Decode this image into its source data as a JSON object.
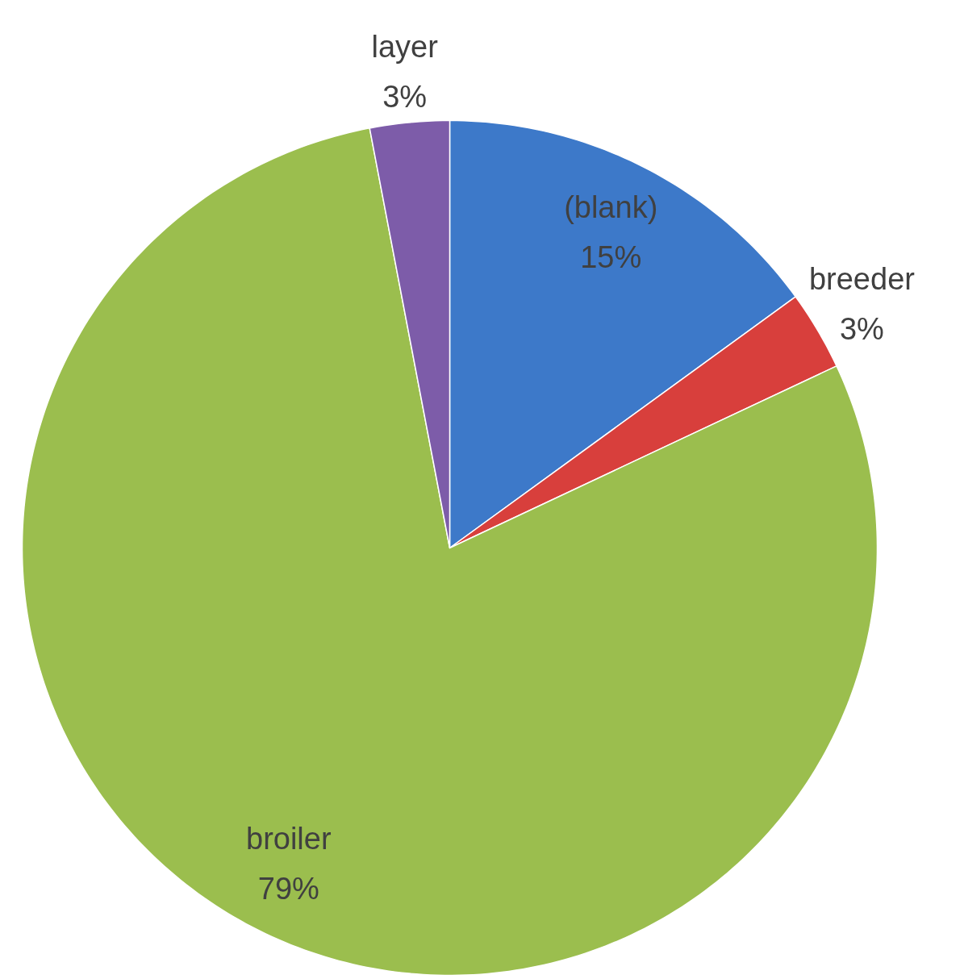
{
  "chart_data": {
    "type": "pie",
    "categories": [
      "(blank)",
      "breeder",
      "broiler",
      "layer"
    ],
    "values": [
      15,
      3,
      79,
      3
    ],
    "colors": [
      "#3d79c9",
      "#d83f3c",
      "#9bbe4e",
      "#7d5ca9"
    ],
    "value_labels": [
      "15%",
      "3%",
      "79%",
      "3%"
    ],
    "data_labels": true
  }
}
